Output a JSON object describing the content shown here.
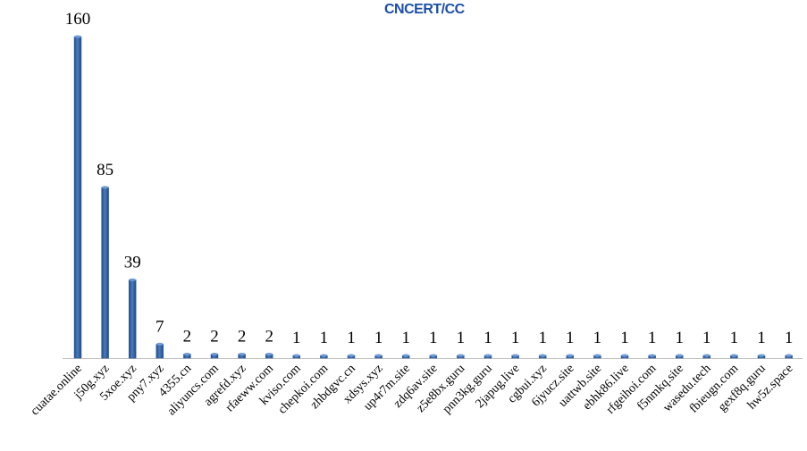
{
  "watermark": "CNCERT/CC",
  "chart_data": {
    "type": "bar",
    "title": "",
    "xlabel": "",
    "ylabel": "",
    "ylim": [
      0,
      160
    ],
    "grid": false,
    "legend": "none",
    "bar_color": "#2f5f9e",
    "categories": [
      "cuatae.online",
      "j50g.xyz",
      "5xoe.xyz",
      "pny7.xyz",
      "4355.cn",
      "aliyuncs.com",
      "agrefd.xyz",
      "rfaeww.com",
      "kviso.com",
      "chepkoi.com",
      "zhbdgvc.cn",
      "xdsys.xyz",
      "up4r7m.site",
      "zdq6av.site",
      "z5e8bx.guru",
      "pnn3kg.guru",
      "2japug.live",
      "cgbui.xyz",
      "6jyucz.site",
      "uattwb.site",
      "ebhk86.live",
      "rfgeihoi.com",
      "f5nmkq.site",
      "wasedu.tech",
      "fbieugn.com",
      "gexf8q.guru",
      "hw5z.space"
    ],
    "values": [
      160,
      85,
      39,
      7,
      2,
      2,
      2,
      2,
      1,
      1,
      1,
      1,
      1,
      1,
      1,
      1,
      1,
      1,
      1,
      1,
      1,
      1,
      1,
      1,
      1,
      1,
      1
    ]
  }
}
